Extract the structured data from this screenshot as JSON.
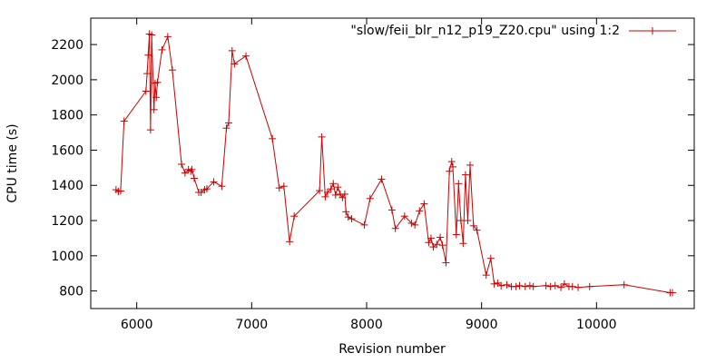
{
  "chart_data": {
    "type": "line",
    "xlabel": "Revision number",
    "ylabel": "CPU time (s)",
    "xlim": [
      5600,
      10850
    ],
    "ylim": [
      700,
      2350
    ],
    "x_ticks": [
      6000,
      7000,
      8000,
      9000,
      10000
    ],
    "y_ticks": [
      800,
      1000,
      1200,
      1400,
      1600,
      1800,
      2000,
      2200
    ],
    "grid": false,
    "legend_position": "top-right",
    "series_color": "#cc0000",
    "series": [
      {
        "name": "\"slow/feii_blr_n12_p19_Z20.cpu\" using 1:2",
        "x": [
          5820,
          5840,
          5860,
          5890,
          6080,
          6090,
          6100,
          6110,
          6120,
          6130,
          6150,
          6160,
          6170,
          6180,
          6220,
          6270,
          6310,
          6390,
          6420,
          6450,
          6470,
          6480,
          6500,
          6540,
          6560,
          6590,
          6610,
          6670,
          6740,
          6780,
          6800,
          6830,
          6850,
          6950,
          7180,
          7240,
          7280,
          7330,
          7370,
          7590,
          7610,
          7640,
          7660,
          7690,
          7710,
          7730,
          7750,
          7770,
          7790,
          7810,
          7820,
          7840,
          7870,
          7980,
          8030,
          8130,
          8220,
          8250,
          8330,
          8390,
          8420,
          8460,
          8500,
          8540,
          8560,
          8580,
          8610,
          8640,
          8660,
          8690,
          8720,
          8740,
          8750,
          8780,
          8800,
          8820,
          8840,
          8860,
          8880,
          8900,
          8930,
          8960,
          9040,
          9080,
          9110,
          9140,
          9170,
          9220,
          9260,
          9300,
          9330,
          9380,
          9420,
          9450,
          9560,
          9600,
          9640,
          9690,
          9720,
          9760,
          9790,
          9840,
          9940,
          10240,
          10640,
          10660
        ],
        "y": [
          1375,
          1365,
          1368,
          1765,
          1935,
          2035,
          2140,
          2260,
          1715,
          2255,
          1830,
          1980,
          1900,
          1985,
          2170,
          2245,
          2055,
          1520,
          1470,
          1490,
          1480,
          1490,
          1440,
          1360,
          1360,
          1375,
          1380,
          1420,
          1395,
          1725,
          1755,
          2165,
          2090,
          2135,
          1665,
          1385,
          1395,
          1080,
          1225,
          1370,
          1675,
          1335,
          1360,
          1380,
          1410,
          1345,
          1390,
          1350,
          1330,
          1350,
          1250,
          1220,
          1210,
          1175,
          1325,
          1435,
          1260,
          1155,
          1225,
          1185,
          1175,
          1255,
          1295,
          1075,
          1100,
          1050,
          1065,
          1105,
          1060,
          960,
          1480,
          1535,
          1505,
          1120,
          1410,
          1200,
          1070,
          1460,
          1200,
          1515,
          1170,
          1145,
          890,
          985,
          840,
          845,
          830,
          835,
          825,
          825,
          830,
          825,
          830,
          825,
          830,
          825,
          830,
          820,
          840,
          825,
          825,
          820,
          825,
          835,
          790,
          790
        ]
      }
    ]
  }
}
